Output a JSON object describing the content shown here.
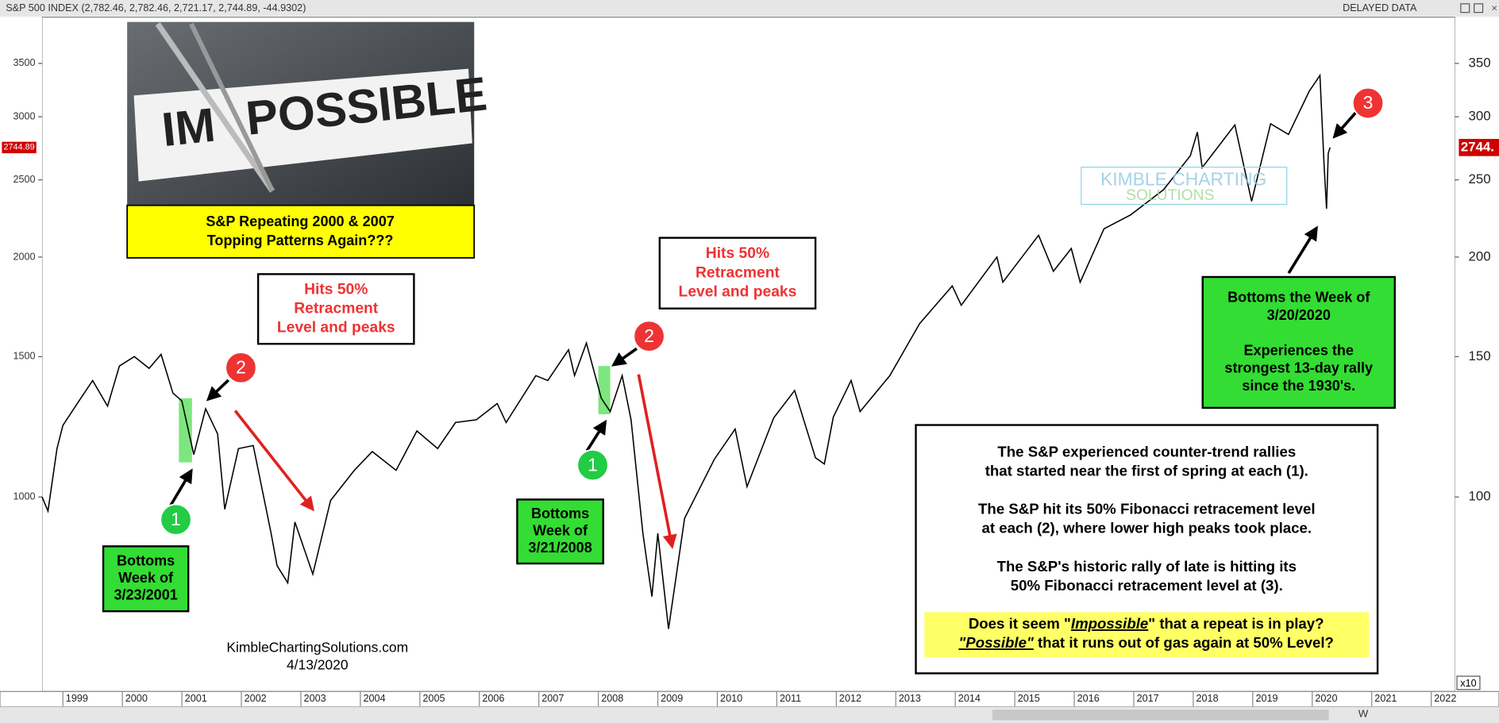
{
  "header": {
    "title": "S&P 500 INDEX (2,782.46, 2,782.46, 2,721.17, 2,744.89, -44.9302)",
    "status": "DELAYED DATA"
  },
  "inset": {
    "image_text": [
      "IM",
      "POSSIBLE"
    ],
    "caption": [
      "S&P Repeating 2000 & 2007",
      "Topping Patterns Again???"
    ]
  },
  "watermark": [
    "KIMBLE CHARTING",
    "SOLUTIONS"
  ],
  "credit": [
    "KimbleChartingSolutions.com",
    "4/13/2020"
  ],
  "toolbar": {
    "interval": "W"
  },
  "chart_data": {
    "type": "line",
    "color": "#000000",
    "log_scale": true,
    "grid": false,
    "x": [
      1998.65,
      1998.75,
      1998.9,
      1999.0,
      1999.3,
      1999.5,
      1999.75,
      1999.95,
      2000.2,
      2000.45,
      2000.65,
      2000.85,
      2001.0,
      2001.2,
      2001.4,
      2001.6,
      2001.72,
      2001.95,
      2002.2,
      2002.5,
      2002.6,
      2002.78,
      2002.9,
      2003.2,
      2003.5,
      2003.9,
      2004.2,
      2004.6,
      2004.95,
      2005.3,
      2005.6,
      2005.95,
      2006.3,
      2006.45,
      2006.95,
      2007.15,
      2007.5,
      2007.6,
      2007.8,
      2008.05,
      2008.2,
      2008.4,
      2008.55,
      2008.75,
      2008.9,
      2009.0,
      2009.18,
      2009.45,
      2009.95,
      2010.3,
      2010.5,
      2010.95,
      2011.3,
      2011.65,
      2011.8,
      2011.95,
      2012.25,
      2012.4,
      2012.9,
      2013.4,
      2013.95,
      2014.1,
      2014.7,
      2014.8,
      2015.4,
      2015.65,
      2015.95,
      2016.1,
      2016.5,
      2016.95,
      2017.5,
      2017.95,
      2018.07,
      2018.15,
      2018.7,
      2018.98,
      2019.3,
      2019.6,
      2019.95,
      2020.13,
      2020.2,
      2020.24,
      2020.27,
      2020.3
    ],
    "values": [
      1000,
      960,
      1150,
      1230,
      1330,
      1400,
      1300,
      1460,
      1500,
      1450,
      1510,
      1350,
      1320,
      1130,
      1290,
      1200,
      965,
      1150,
      1160,
      900,
      820,
      780,
      930,
      800,
      990,
      1080,
      1140,
      1080,
      1210,
      1150,
      1240,
      1250,
      1310,
      1240,
      1420,
      1400,
      1530,
      1420,
      1560,
      1330,
      1280,
      1420,
      1250,
      900,
      750,
      900,
      683,
      940,
      1115,
      1217,
      1030,
      1257,
      1360,
      1120,
      1100,
      1260,
      1400,
      1280,
      1420,
      1650,
      1840,
      1740,
      2000,
      1860,
      2130,
      1920,
      2050,
      1860,
      2170,
      2260,
      2430,
      2680,
      2870,
      2590,
      2930,
      2350,
      2940,
      2850,
      3230,
      3380,
      2600,
      2300,
      2700,
      2745
    ],
    "xlim": [
      1998.65,
      2022.4
    ],
    "xticks": [
      1999,
      2000,
      2001,
      2002,
      2003,
      2004,
      2005,
      2006,
      2007,
      2008,
      2009,
      2010,
      2011,
      2012,
      2013,
      2014,
      2015,
      2016,
      2017,
      2018,
      2019,
      2020,
      2021,
      2022
    ],
    "ylim": [
      570,
      4000
    ],
    "yticks": [
      1000,
      1500,
      2000,
      2500,
      3000,
      3500
    ],
    "y2lim": [
      57,
      400
    ],
    "y2ticks": [
      100,
      150,
      200,
      250,
      300,
      350
    ],
    "y2_multiplier": "x10",
    "last_value": 2744.89,
    "last_value_y2": {
      "value": 2744.89,
      "label": "2744."
    },
    "highlights": [
      {
        "x": [
          2000.95,
          2001.17
        ],
        "y": [
          1105,
          1330
        ]
      },
      {
        "x": [
          2008.0,
          2008.2
        ],
        "y": [
          1270,
          1460
        ]
      }
    ],
    "markers": [
      "1",
      "2",
      "1",
      "2",
      "3"
    ],
    "annotations": [
      {
        "lines": [
          "Bottoms",
          "Week of",
          "3/23/2001"
        ]
      },
      {
        "lines": [
          "Hits 50%",
          "Retracment",
          "Level and peaks"
        ]
      },
      {
        "lines": [
          "Bottoms",
          "Week of",
          "3/21/2008"
        ]
      },
      {
        "lines": [
          "Hits 50%",
          "Retracment",
          "Level and peaks"
        ]
      },
      {
        "lines": [
          "Bottoms the Week of",
          "3/20/2020",
          "Experiences the",
          "strongest 13-day rally",
          "since the 1930's."
        ]
      },
      {
        "lines": [
          "The S&P experienced counter-trend rallies",
          "that started near the first of spring at each (1).",
          "The S&P hit its 50% Fibonacci retracement level",
          "at each (2), where lower high peaks took place.",
          "The S&P's historic rally of late is hitting its",
          "50% Fibonacci retracement level at (3)."
        ]
      }
    ],
    "question": [
      [
        {
          "text": "Does it seem \""
        },
        {
          "text": "Impossible",
          "emphasis": true
        },
        {
          "text": "\" that a repeat is in play?"
        }
      ],
      [
        {
          "text": "\"Possible\"",
          "emphasis": true
        },
        {
          "text": " that it runs out of gas again at 50% Level?"
        }
      ]
    ]
  }
}
